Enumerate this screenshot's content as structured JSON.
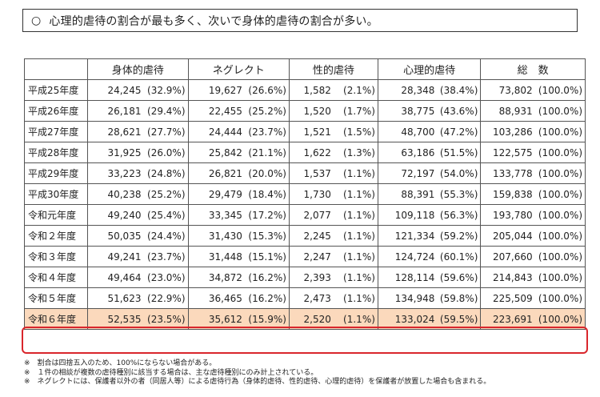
{
  "headline": {
    "marker": "○",
    "text": "心理的虐待の割合が最も多く、次いで身体的虐待の割合が多い。"
  },
  "table": {
    "headers": [
      "",
      "身体的虐待",
      "ネグレクト",
      "性的虐待",
      "心理的虐待",
      "総　数"
    ],
    "rows": [
      {
        "label": "平成25年度",
        "physical": "24,245",
        "physical_pct": "(32.9%)",
        "neglect": "19,627",
        "neglect_pct": "(26.6%)",
        "sexual": "1,582",
        "sexual_pct": "(2.1%)",
        "psych": "28,348",
        "psych_pct": "(38.4%)",
        "total": "73,802",
        "total_pct": "(100.0%)"
      },
      {
        "label": "平成26年度",
        "physical": "26,181",
        "physical_pct": "(29.4%)",
        "neglect": "22,455",
        "neglect_pct": "(25.2%)",
        "sexual": "1,520",
        "sexual_pct": "(1.7%)",
        "psych": "38,775",
        "psych_pct": "(43.6%)",
        "total": "88,931",
        "total_pct": "(100.0%)"
      },
      {
        "label": "平成27年度",
        "physical": "28,621",
        "physical_pct": "(27.7%)",
        "neglect": "24,444",
        "neglect_pct": "(23.7%)",
        "sexual": "1,521",
        "sexual_pct": "(1.5%)",
        "psych": "48,700",
        "psych_pct": "(47.2%)",
        "total": "103,286",
        "total_pct": "(100.0%)"
      },
      {
        "label": "平成28年度",
        "physical": "31,925",
        "physical_pct": "(26.0%)",
        "neglect": "25,842",
        "neglect_pct": "(21.1%)",
        "sexual": "1,622",
        "sexual_pct": "(1.3%)",
        "psych": "63,186",
        "psych_pct": "(51.5%)",
        "total": "122,575",
        "total_pct": "(100.0%)"
      },
      {
        "label": "平成29年度",
        "physical": "33,223",
        "physical_pct": "(24.8%)",
        "neglect": "26,821",
        "neglect_pct": "(20.0%)",
        "sexual": "1,537",
        "sexual_pct": "(1.1%)",
        "psych": "72,197",
        "psych_pct": "(54.0%)",
        "total": "133,778",
        "total_pct": "(100.0%)"
      },
      {
        "label": "平成30年度",
        "physical": "40,238",
        "physical_pct": "(25.2%)",
        "neglect": "29,479",
        "neglect_pct": "(18.4%)",
        "sexual": "1,730",
        "sexual_pct": "(1.1%)",
        "psych": "88,391",
        "psych_pct": "(55.3%)",
        "total": "159,838",
        "total_pct": "(100.0%)"
      },
      {
        "label": "令和元年度",
        "physical": "49,240",
        "physical_pct": "(25.4%)",
        "neglect": "33,345",
        "neglect_pct": "(17.2%)",
        "sexual": "2,077",
        "sexual_pct": "(1.1%)",
        "psych": "109,118",
        "psych_pct": "(56.3%)",
        "total": "193,780",
        "total_pct": "(100.0%)"
      },
      {
        "label": "令和２年度",
        "physical": "50,035",
        "physical_pct": "(24.4%)",
        "neglect": "31,430",
        "neglect_pct": "(15.3%)",
        "sexual": "2,245",
        "sexual_pct": "(1.1%)",
        "psych": "121,334",
        "psych_pct": "(59.2%)",
        "total": "205,044",
        "total_pct": "(100.0%)"
      },
      {
        "label": "令和３年度",
        "physical": "49,241",
        "physical_pct": "(23.7%)",
        "neglect": "31,448",
        "neglect_pct": "(15.1%)",
        "sexual": "2,247",
        "sexual_pct": "(1.1%)",
        "psych": "124,724",
        "psych_pct": "(60.1%)",
        "total": "207,660",
        "total_pct": "(100.0%)"
      },
      {
        "label": "令和４年度",
        "physical": "49,464",
        "physical_pct": "(23.0%)",
        "neglect": "34,872",
        "neglect_pct": "(16.2%)",
        "sexual": "2,393",
        "sexual_pct": "(1.1%)",
        "psych": "128,114",
        "psych_pct": "(59.6%)",
        "total": "214,843",
        "total_pct": "(100.0%)"
      },
      {
        "label": "令和５年度",
        "physical": "51,623",
        "physical_pct": "(22.9%)",
        "neglect": "36,465",
        "neglect_pct": "(16.2%)",
        "sexual": "2,473",
        "sexual_pct": "(1.1%)",
        "psych": "134,948",
        "psych_pct": "(59.8%)",
        "total": "225,509",
        "total_pct": "(100.0%)"
      },
      {
        "label": "令和６年度",
        "physical": "52,535",
        "physical_pct": "(23.5%)",
        "neglect": "35,612",
        "neglect_pct": "(15.9%)",
        "sexual": "2,520",
        "sexual_pct": "(1.1%)",
        "psych": "133,024",
        "psych_pct": "(59.5%)",
        "total": "223,691",
        "total_pct": "(100.0%)",
        "highlight": true
      }
    ]
  },
  "notes": [
    "※　割合は四捨五入のため、100%にならない場合がある。",
    "※　１件の相談が複数の虐待種別に該当する場合は、主な虐待種別にのみ計上されている。",
    "※　ネグレクトには、保護者以外の者（同居人等）による虐待行為（身体的虐待、性的虐待、心理的虐待）を保護者が放置した場合も含まれる。"
  ],
  "colors": {
    "highlight_fill": "#fbd9bc",
    "highlight_border": "#d9262c"
  }
}
